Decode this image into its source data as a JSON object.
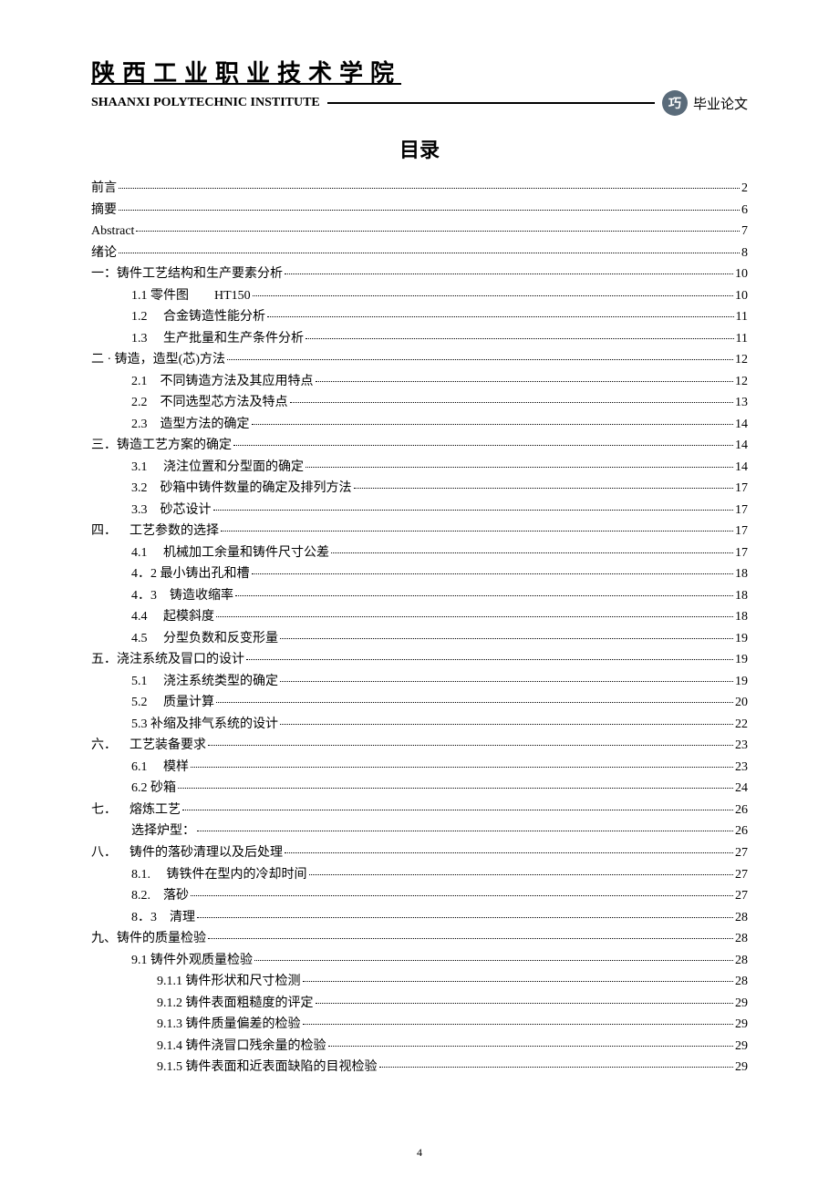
{
  "header": {
    "institute_cn": "陕西工业职业技术学院",
    "institute_en": "SHAANXI POLYTECHNIC INSTITUTE",
    "logo_text": "巧",
    "thesis_label": "毕业论文"
  },
  "toc_title": "目录",
  "entries": [
    {
      "label": "前言",
      "page": "2",
      "indent": 0
    },
    {
      "label": "摘要",
      "page": "6",
      "indent": 0
    },
    {
      "label": "Abstract",
      "page": "7",
      "indent": 0
    },
    {
      "label": "绪论",
      "page": "8",
      "indent": 0
    },
    {
      "label": "一：铸件工艺结构和生产要素分析",
      "page": "10",
      "indent": 0
    },
    {
      "label": "1.1 零件图  HT150",
      "page": "10",
      "indent": 1
    },
    {
      "label": "1.2  合金铸造性能分析",
      "page": "11",
      "indent": 1
    },
    {
      "label": "1.3  生产批量和生产条件分析",
      "page": "11",
      "indent": 1
    },
    {
      "label": "二 · 铸造，造型(芯)方法",
      "page": "12",
      "indent": 0
    },
    {
      "label": "2.1 不同铸造方法及其应用特点",
      "page": "12",
      "indent": 1
    },
    {
      "label": "2.2 不同选型芯方法及特点",
      "page": "13",
      "indent": 1
    },
    {
      "label": "2.3 造型方法的确定",
      "page": "14",
      "indent": 1
    },
    {
      "label": "三．铸造工艺方案的确定",
      "page": "14",
      "indent": 0
    },
    {
      "label": "3.1  浇注位置和分型面的确定",
      "page": "14",
      "indent": 1
    },
    {
      "label": "3.2 砂箱中铸件数量的确定及排列方法",
      "page": "17",
      "indent": 1
    },
    {
      "label": "3.3 砂芯设计",
      "page": "17",
      "indent": 1
    },
    {
      "label": "四． 工艺参数的选择",
      "page": "17",
      "indent": 0
    },
    {
      "label": "4.1  机械加工余量和铸件尺寸公差",
      "page": "17",
      "indent": 1
    },
    {
      "label": "4．2 最小铸出孔和槽",
      "page": "18",
      "indent": 1
    },
    {
      "label": "4．3 铸造收缩率",
      "page": "18",
      "indent": 1
    },
    {
      "label": "4.4  起模斜度",
      "page": "18",
      "indent": 1
    },
    {
      "label": "4.5  分型负数和反变形量",
      "page": "19",
      "indent": 1
    },
    {
      "label": "五．浇注系统及冒口的设计",
      "page": "19",
      "indent": 0
    },
    {
      "label": "5.1  浇注系统类型的确定",
      "page": "19",
      "indent": 1
    },
    {
      "label": "5.2  质量计算",
      "page": "20",
      "indent": 1
    },
    {
      "label": "5.3 补缩及排气系统的设计",
      "page": "22",
      "indent": 1
    },
    {
      "label": "六． 工艺装备要求",
      "page": "23",
      "indent": 0
    },
    {
      "label": "6.1  模样",
      "page": "23",
      "indent": 1
    },
    {
      "label": "6.2  砂箱",
      "page": "24",
      "indent": 1
    },
    {
      "label": "七． 熔炼工艺",
      "page": "26",
      "indent": 0
    },
    {
      "label": "选择炉型：",
      "page": "26",
      "indent": 1
    },
    {
      "label": "八． 铸件的落砂清理以及后处理",
      "page": "27",
      "indent": 0
    },
    {
      "label": "8.1.  铸铁件在型内的冷却时间",
      "page": "27",
      "indent": 1
    },
    {
      "label": "8.2. 落砂",
      "page": "27",
      "indent": 1
    },
    {
      "label": "8．3 清理",
      "page": "28",
      "indent": 1
    },
    {
      "label": "九、铸件的质量检验",
      "page": "28",
      "indent": 0
    },
    {
      "label": "9.1 铸件外观质量检验",
      "page": "28",
      "indent": 1
    },
    {
      "label": "9.1.1 铸件形状和尺寸检测",
      "page": "28",
      "indent": 2
    },
    {
      "label": "9.1.2 铸件表面粗糙度的评定",
      "page": "29",
      "indent": 2
    },
    {
      "label": "9.1.3 铸件质量偏差的检验",
      "page": "29",
      "indent": 2
    },
    {
      "label": "9.1.4 铸件浇冒口残余量的检验",
      "page": "29",
      "indent": 2
    },
    {
      "label": "9.1.5 铸件表面和近表面缺陷的目视检验",
      "page": "29",
      "indent": 2
    }
  ],
  "footer_page": "4"
}
